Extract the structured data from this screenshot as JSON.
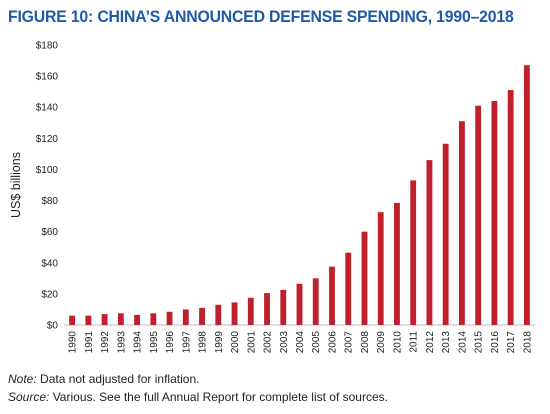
{
  "chart_data": {
    "type": "bar",
    "title": "FIGURE 10: CHINA’S ANNOUNCED DEFENSE SPENDING, 1990–2018",
    "xlabel": "",
    "ylabel": "US$ billions",
    "ylim": [
      0,
      180
    ],
    "ytick_values": [
      0,
      20,
      40,
      60,
      80,
      100,
      120,
      140,
      160,
      180
    ],
    "ytick_labels": [
      "$0",
      "$20",
      "$40",
      "$60",
      "$80",
      "$100",
      "$120",
      "$140",
      "$160",
      "$180"
    ],
    "grid": false,
    "legend": "none",
    "bar_color": "#c0202a",
    "title_color": "#1f5aa6",
    "categories": [
      "1990",
      "1991",
      "1992",
      "1993",
      "1994",
      "1995",
      "1996",
      "1997",
      "1998",
      "1999",
      "2000",
      "2001",
      "2002",
      "2003",
      "2004",
      "2005",
      "2006",
      "2007",
      "2008",
      "2009",
      "2010",
      "2011",
      "2012",
      "2013",
      "2014",
      "2015",
      "2016",
      "2017",
      "2018"
    ],
    "values": [
      6,
      6,
      7,
      7.5,
      6.5,
      7.5,
      8.5,
      10,
      11,
      13,
      14.5,
      17.5,
      20.5,
      22.5,
      26.5,
      30,
      37.5,
      46.5,
      60,
      72.5,
      78.5,
      93,
      106,
      116.5,
      131,
      141,
      144,
      151,
      167
    ]
  },
  "notes": {
    "note_label": "Note:",
    "note_text": " Data not adjusted for inflation.",
    "source_label": "Source:",
    "source_text": " Various. See the full Annual Report for complete list of sources."
  }
}
